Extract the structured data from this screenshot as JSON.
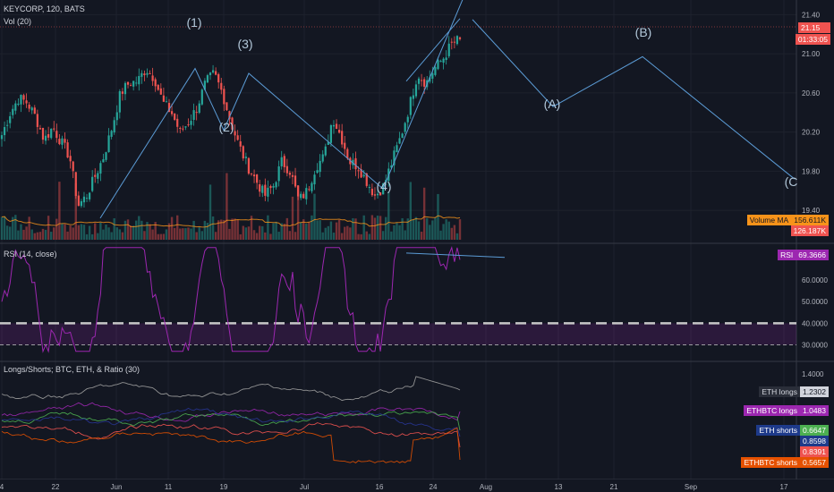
{
  "header": {
    "symbol": "KEYCORP, 120, BATS",
    "volume_label": "Vol (20)",
    "rsi_label": "RSI (14, close)",
    "ls_label": "Longs/Shorts; BTC, ETH, & Ratio (30)"
  },
  "price_tags": {
    "last_price": "21.15",
    "countdown": "01:33:05",
    "volume_ma_label": "Volume MA",
    "volume_ma_value": "156.611K",
    "volume_value": "126.187K",
    "rsi_label": "RSI",
    "rsi_value": "69.3666",
    "eth_longs_label": "ETH longs",
    "eth_longs_value": "1.2302",
    "ethbtc_longs_label": "ETHBTC longs",
    "ethbtc_longs_value": "1.0483",
    "eth_shorts_label": "ETH shorts",
    "eth_shorts_value": "0.6647",
    "extra_value_1": "0.8598",
    "extra_value_2": "0.8391",
    "ethbtc_shorts_label": "ETHBTC shorts",
    "ethbtc_shorts_value": "0.5657"
  },
  "colors": {
    "background": "#131722",
    "up": "#26a69a",
    "down": "#ef5350",
    "wave_line": "#5b9bd5",
    "rsi": "#9c27b0",
    "volume_ma": "#f7931a"
  },
  "chart_data": [
    {
      "type": "candlestick",
      "title": "KEYCORP, 120, BATS",
      "x_ticks": [
        "4",
        "22",
        "Jun",
        "11",
        "19",
        "Jul",
        "16",
        "24",
        "Aug",
        "13",
        "21",
        "Sep",
        "17"
      ],
      "y_ticks": [
        "21.40",
        "21.00",
        "20.60",
        "20.20",
        "19.80",
        "19.40"
      ],
      "ylim": [
        19.1,
        21.55
      ],
      "approx_close_path": [
        20.17,
        20.4,
        20.55,
        20.5,
        20.35,
        20.12,
        20.25,
        20.1,
        19.95,
        19.45,
        19.55,
        19.75,
        19.95,
        20.25,
        20.6,
        20.7,
        20.72,
        20.85,
        20.75,
        20.5,
        20.4,
        20.2,
        20.3,
        20.45,
        20.7,
        20.8,
        20.6,
        20.3,
        20.05,
        19.85,
        19.7,
        19.55,
        19.65,
        19.9,
        19.8,
        19.5,
        19.6,
        19.85,
        19.95,
        20.35,
        20.15,
        19.9,
        19.85,
        19.7,
        19.55,
        19.65,
        19.9,
        20.15,
        20.45,
        20.8,
        20.7,
        20.85,
        20.95,
        21.1,
        21.15
      ],
      "wave_labels": [
        "(1)",
        "(2)",
        "(3)",
        "(4)",
        "(A)",
        "(B)",
        "(C"
      ]
    },
    {
      "type": "line",
      "title": "RSI (14, close)",
      "y_ticks": [
        "60.0000",
        "50.0000",
        "40.0000",
        "30.0000"
      ],
      "ylim": [
        24,
        77
      ],
      "bands": [
        30,
        40
      ],
      "last_value": 69.3666
    },
    {
      "type": "line",
      "title": "Longs/Shorts; BTC, ETH, & Ratio (30)",
      "y_ticks": [
        "1.4000"
      ],
      "series": [
        {
          "name": "ETH longs",
          "last": 1.2302
        },
        {
          "name": "ETHBTC longs",
          "last": 1.0483
        },
        {
          "name": "ETH shorts",
          "last": 0.6647
        },
        {
          "name": "ETHBTC shorts",
          "last": 0.5657
        }
      ]
    }
  ]
}
